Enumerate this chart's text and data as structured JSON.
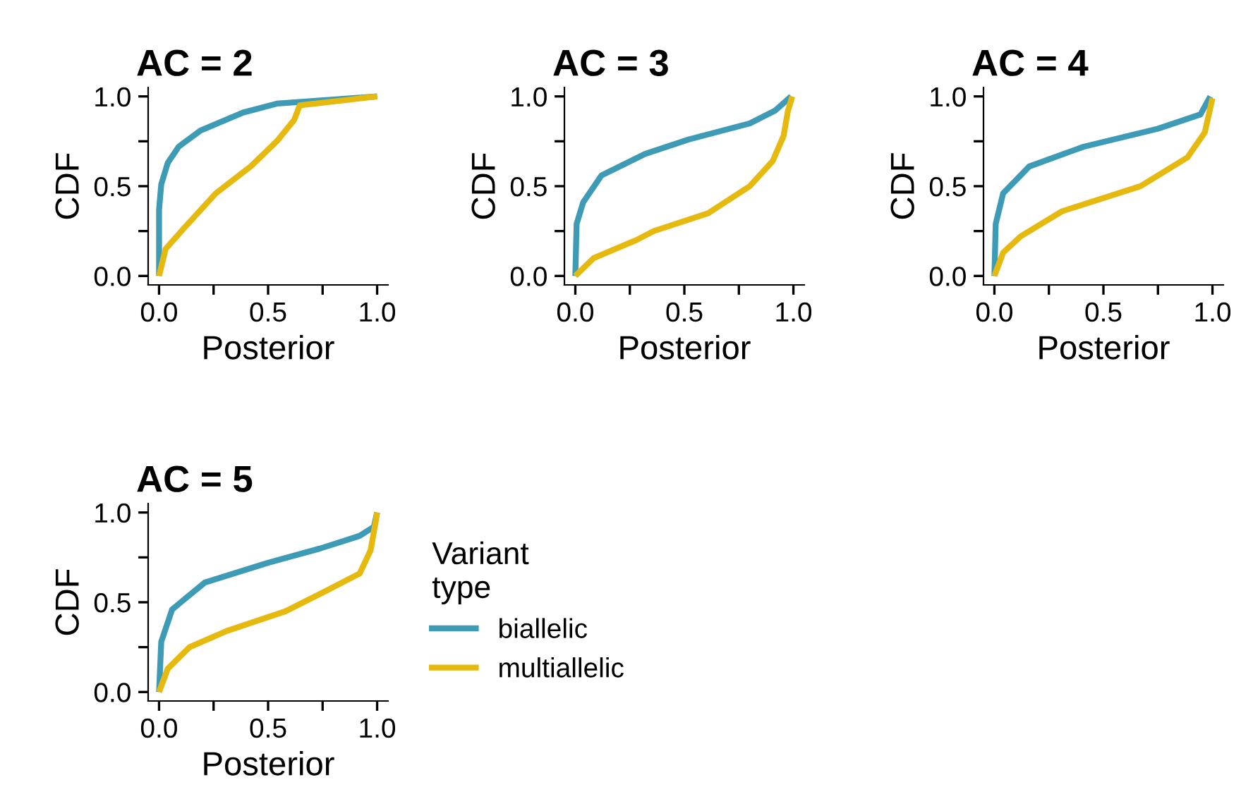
{
  "chart_data": [
    {
      "type": "line",
      "title": "AC = 2",
      "xlabel": "Posterior",
      "ylabel": "CDF",
      "xlim": [
        -0.05,
        1.05
      ],
      "ylim": [
        -0.05,
        1.05
      ],
      "xticks": [
        {
          "value": 0,
          "label": "0.0"
        },
        {
          "value": 0.25,
          "label": null
        },
        {
          "value": 0.5,
          "label": "0.5"
        },
        {
          "value": 0.75,
          "label": null
        },
        {
          "value": 1,
          "label": "1.0"
        }
      ],
      "yticks": [
        {
          "value": 0,
          "label": "0.0"
        },
        {
          "value": 0.25,
          "label": null
        },
        {
          "value": 0.5,
          "label": "0.5"
        },
        {
          "value": 0.75,
          "label": null
        },
        {
          "value": 1,
          "label": "1.0"
        }
      ],
      "grid": false,
      "legend": false,
      "line_style": "solid",
      "marker": "none",
      "series": [
        {
          "color": "#3e9bb5",
          "x": [
            0,
            0,
            0.01,
            0.04,
            0.09,
            0.19,
            0.385,
            0.54,
            1
          ],
          "values": [
            0,
            0.37,
            0.51,
            0.63,
            0.72,
            0.81,
            0.91,
            0.96,
            1
          ]
        },
        {
          "color": "#e6b90f",
          "x": [
            0,
            0.03,
            0.11,
            0.17,
            0.26,
            0.42,
            0.54,
            0.62,
            0.645,
            1
          ],
          "values": [
            0,
            0.15,
            0.26,
            0.34,
            0.46,
            0.61,
            0.75,
            0.87,
            0.95,
            1
          ]
        }
      ]
    },
    {
      "type": "line",
      "title": "AC = 3",
      "xlabel": "Posterior",
      "ylabel": "CDF",
      "xlim": [
        -0.05,
        1.05
      ],
      "ylim": [
        -0.05,
        1.05
      ],
      "xticks": [
        {
          "value": 0,
          "label": "0.0"
        },
        {
          "value": 0.25,
          "label": null
        },
        {
          "value": 0.5,
          "label": "0.5"
        },
        {
          "value": 0.75,
          "label": null
        },
        {
          "value": 1,
          "label": "1.0"
        }
      ],
      "yticks": [
        {
          "value": 0,
          "label": "0.0"
        },
        {
          "value": 0.25,
          "label": null
        },
        {
          "value": 0.5,
          "label": "0.5"
        },
        {
          "value": 0.75,
          "label": null
        },
        {
          "value": 1,
          "label": "1.0"
        }
      ],
      "grid": false,
      "legend": false,
      "line_style": "solid",
      "marker": "none",
      "series": [
        {
          "color": "#3e9bb5",
          "x": [
            0,
            0.006,
            0.036,
            0.12,
            0.32,
            0.52,
            0.8,
            0.915,
            0.99
          ],
          "values": [
            0,
            0.29,
            0.41,
            0.56,
            0.68,
            0.76,
            0.85,
            0.92,
            1
          ]
        },
        {
          "color": "#e6b90f",
          "x": [
            0,
            0.085,
            0.28,
            0.36,
            0.61,
            0.8,
            0.905,
            0.955,
            0.975,
            0.995
          ],
          "values": [
            0,
            0.1,
            0.2,
            0.25,
            0.35,
            0.5,
            0.64,
            0.78,
            0.92,
            1
          ]
        }
      ]
    },
    {
      "type": "line",
      "title": "AC = 4",
      "xlabel": "Posterior",
      "ylabel": "CDF",
      "xlim": [
        -0.05,
        1.05
      ],
      "ylim": [
        -0.05,
        1.05
      ],
      "xticks": [
        {
          "value": 0,
          "label": "0.0"
        },
        {
          "value": 0.25,
          "label": null
        },
        {
          "value": 0.5,
          "label": "0.5"
        },
        {
          "value": 0.75,
          "label": null
        },
        {
          "value": 1,
          "label": "1.0"
        }
      ],
      "yticks": [
        {
          "value": 0,
          "label": "0.0"
        },
        {
          "value": 0.25,
          "label": null
        },
        {
          "value": 0.5,
          "label": "0.5"
        },
        {
          "value": 0.75,
          "label": null
        },
        {
          "value": 1,
          "label": "1.0"
        }
      ],
      "grid": false,
      "legend": false,
      "line_style": "solid",
      "marker": "none",
      "series": [
        {
          "color": "#3e9bb5",
          "x": [
            0,
            0.006,
            0.04,
            0.16,
            0.41,
            0.75,
            0.945,
            0.99
          ],
          "values": [
            0,
            0.29,
            0.46,
            0.61,
            0.72,
            0.82,
            0.9,
            1
          ]
        },
        {
          "color": "#e6b90f",
          "x": [
            0,
            0.04,
            0.12,
            0.31,
            0.67,
            0.885,
            0.965,
            1
          ],
          "values": [
            0,
            0.13,
            0.22,
            0.36,
            0.5,
            0.66,
            0.8,
            0.99
          ]
        }
      ]
    },
    {
      "type": "line",
      "title": "AC = 5",
      "xlabel": "Posterior",
      "ylabel": "CDF",
      "legend_title": "Variant\ntype",
      "xlim": [
        -0.05,
        1.05
      ],
      "ylim": [
        -0.05,
        1.05
      ],
      "xticks": [
        {
          "value": 0,
          "label": "0.0"
        },
        {
          "value": 0.25,
          "label": null
        },
        {
          "value": 0.5,
          "label": "0.5"
        },
        {
          "value": 0.75,
          "label": null
        },
        {
          "value": 1,
          "label": "1.0"
        }
      ],
      "yticks": [
        {
          "value": 0,
          "label": "0.0"
        },
        {
          "value": 0.25,
          "label": null
        },
        {
          "value": 0.5,
          "label": "0.5"
        },
        {
          "value": 0.75,
          "label": null
        },
        {
          "value": 1,
          "label": "1.0"
        }
      ],
      "grid": false,
      "legend": "right",
      "line_style": "solid",
      "marker": "none",
      "series": [
        {
          "name": "biallelic",
          "color": "#3e9bb5",
          "x": [
            0,
            0.01,
            0.06,
            0.21,
            0.5,
            0.74,
            0.92,
            0.985,
            1
          ],
          "values": [
            0,
            0.28,
            0.46,
            0.61,
            0.72,
            0.8,
            0.87,
            0.92,
            1
          ]
        },
        {
          "name": "multiallelic",
          "color": "#e6b90f",
          "x": [
            0,
            0.04,
            0.14,
            0.31,
            0.58,
            0.76,
            0.92,
            0.97,
            0.995,
            1
          ],
          "values": [
            0,
            0.13,
            0.25,
            0.34,
            0.45,
            0.56,
            0.66,
            0.79,
            0.96,
            1
          ]
        }
      ]
    }
  ]
}
